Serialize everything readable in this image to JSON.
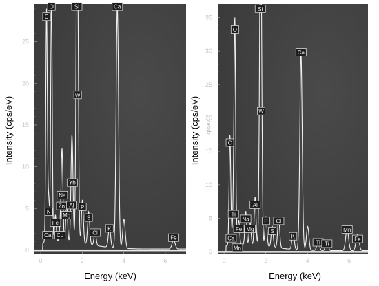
{
  "chart_data": [
    {
      "type": "line",
      "title": "",
      "xlabel": "Energy (keV)",
      "ylabel": "Intensity (cps/eV)",
      "unit_label": "",
      "xlim": [
        -0.3,
        7.0
      ],
      "ylim": [
        -0.5,
        29.5
      ],
      "x_ticks": [
        0,
        2,
        4,
        6
      ],
      "y_ticks": [
        0,
        5,
        10,
        15,
        20,
        25
      ],
      "grid": false,
      "background": "#3a3a3a",
      "line_color": "#f0f0f0",
      "peaks": [
        {
          "element": "C",
          "energy": 0.28,
          "intensity": 27.5,
          "label_y": 28.0
        },
        {
          "element": "O",
          "energy": 0.52,
          "intensity": 29.0,
          "label_y": 29.2
        },
        {
          "element": "Si",
          "energy": 1.74,
          "intensity": 29.0,
          "label_y": 29.2
        },
        {
          "element": "Ca",
          "energy": 3.69,
          "intensity": 29.0,
          "label_y": 29.2
        },
        {
          "element": "W",
          "energy": 1.78,
          "intensity": 18.0,
          "label_y": 18.6
        },
        {
          "element": "Yb",
          "energy": 1.52,
          "intensity": 7.6,
          "label_y": 8.1
        },
        {
          "element": "Na",
          "energy": 1.04,
          "intensity": 6.4,
          "label_y": 6.6
        },
        {
          "element": "Zn",
          "energy": 1.01,
          "intensity": 5.4,
          "label_y": 5.3
        },
        {
          "element": "Al",
          "energy": 1.49,
          "intensity": 6.0,
          "label_y": 5.4
        },
        {
          "element": "P",
          "energy": 2.01,
          "intensity": 5.2,
          "label_y": 5.2
        },
        {
          "element": "Mg",
          "energy": 1.25,
          "intensity": 4.5,
          "label_y": 4.2
        },
        {
          "element": "N",
          "energy": 0.39,
          "intensity": 4.4,
          "label_y": 4.6
        },
        {
          "element": "S",
          "energy": 2.31,
          "intensity": 3.9,
          "label_y": 3.9
        },
        {
          "element": "Fe",
          "energy": 0.71,
          "intensity": 3.2,
          "label_y": 3.3
        },
        {
          "element": "K",
          "energy": 3.31,
          "intensity": 2.4,
          "label_y": 2.6
        },
        {
          "element": "Cl",
          "energy": 2.62,
          "intensity": 1.6,
          "label_y": 2.1
        },
        {
          "element": "Ca",
          "energy": 0.34,
          "intensity": 1.8,
          "label_y": 1.8
        },
        {
          "element": "Cu",
          "energy": 0.93,
          "intensity": 1.6,
          "label_y": 1.8
        },
        {
          "element": "Fe",
          "energy": 6.4,
          "intensity": 1.1,
          "label_y": 1.5
        }
      ]
    },
    {
      "type": "line",
      "title": "",
      "xlabel": "Energy (keV)",
      "ylabel": "Intensity (cps/eV)",
      "unit_label": "cps/eV",
      "xlim": [
        -0.3,
        6.9
      ],
      "ylim": [
        -0.4,
        37.0
      ],
      "x_ticks": [
        0,
        2,
        4,
        6
      ],
      "y_ticks": [
        0,
        5,
        10,
        15,
        20,
        25,
        30,
        35
      ],
      "grid": false,
      "background": "#3a3a3a",
      "line_color": "#f0f0f0",
      "peaks": [
        {
          "element": "Si",
          "energy": 1.74,
          "intensity": 36.5,
          "label_y": 36.3
        },
        {
          "element": "O",
          "energy": 0.52,
          "intensity": 33.0,
          "label_y": 33.2
        },
        {
          "element": "Ca",
          "energy": 3.69,
          "intensity": 29.5,
          "label_y": 29.8
        },
        {
          "element": "W",
          "energy": 1.78,
          "intensity": 21.0,
          "label_y": 21.0
        },
        {
          "element": "C",
          "energy": 0.28,
          "intensity": 16.0,
          "label_y": 16.3
        },
        {
          "element": "Al",
          "energy": 1.49,
          "intensity": 7.2,
          "label_y": 7.0
        },
        {
          "element": "Ti",
          "energy": 0.45,
          "intensity": 5.6,
          "label_y": 5.6
        },
        {
          "element": "Na",
          "energy": 1.04,
          "intensity": 5.0,
          "label_y": 4.9
        },
        {
          "element": "P",
          "energy": 2.01,
          "intensity": 4.4,
          "label_y": 4.6
        },
        {
          "element": "Cl",
          "energy": 2.62,
          "intensity": 4.4,
          "label_y": 4.6
        },
        {
          "element": "Fe",
          "energy": 0.71,
          "intensity": 3.4,
          "label_y": 3.4
        },
        {
          "element": "Mg",
          "energy": 1.25,
          "intensity": 3.6,
          "label_y": 3.4
        },
        {
          "element": "S",
          "energy": 2.31,
          "intensity": 3.1,
          "label_y": 3.1
        },
        {
          "element": "K",
          "energy": 3.31,
          "intensity": 2.5,
          "label_y": 2.3
        },
        {
          "element": "Mn",
          "energy": 5.9,
          "intensity": 3.2,
          "label_y": 3.3
        },
        {
          "element": "Ca",
          "energy": 0.34,
          "intensity": 2.0,
          "label_y": 2.0
        },
        {
          "element": "Mn",
          "energy": 0.64,
          "intensity": 1.2,
          "label_y": 0.6
        },
        {
          "element": "Ti",
          "energy": 4.51,
          "intensity": 1.4,
          "label_y": 1.4
        },
        {
          "element": "Ti",
          "energy": 4.93,
          "intensity": 1.2,
          "label_y": 1.2
        },
        {
          "element": "Fe",
          "energy": 6.4,
          "intensity": 2.4,
          "label_y": 1.9
        }
      ]
    }
  ]
}
